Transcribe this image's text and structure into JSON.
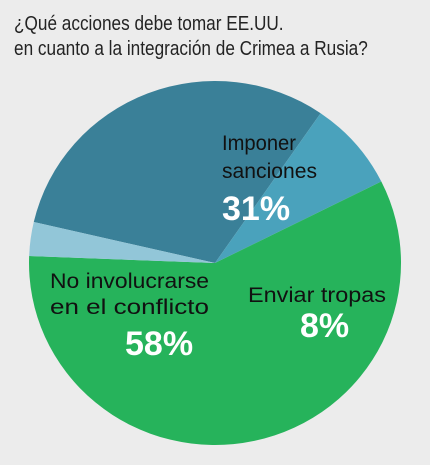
{
  "title": {
    "line1": "¿Qué acciones debe tomar EE.UU.",
    "line2": "en cuanto a la integración de Crimea a Rusia?"
  },
  "chart_data": {
    "type": "pie",
    "title": "¿Qué acciones debe tomar EE.UU. en cuanto a la integración de Crimea a Rusia?",
    "slices": [
      {
        "label": [
          "Imponer",
          "sanciones"
        ],
        "value": 31,
        "display": "31%",
        "color": "#3a8098"
      },
      {
        "label": [
          "Enviar tropas"
        ],
        "value": 8,
        "display": "8%",
        "color": "#4aa2bc"
      },
      {
        "label": [
          "No involucrarse",
          "en el conflicto"
        ],
        "value": 58,
        "display": "58%",
        "color": "#26b35b"
      },
      {
        "label": [],
        "value": 3,
        "display": "",
        "color": "#92c6d8"
      }
    ]
  }
}
